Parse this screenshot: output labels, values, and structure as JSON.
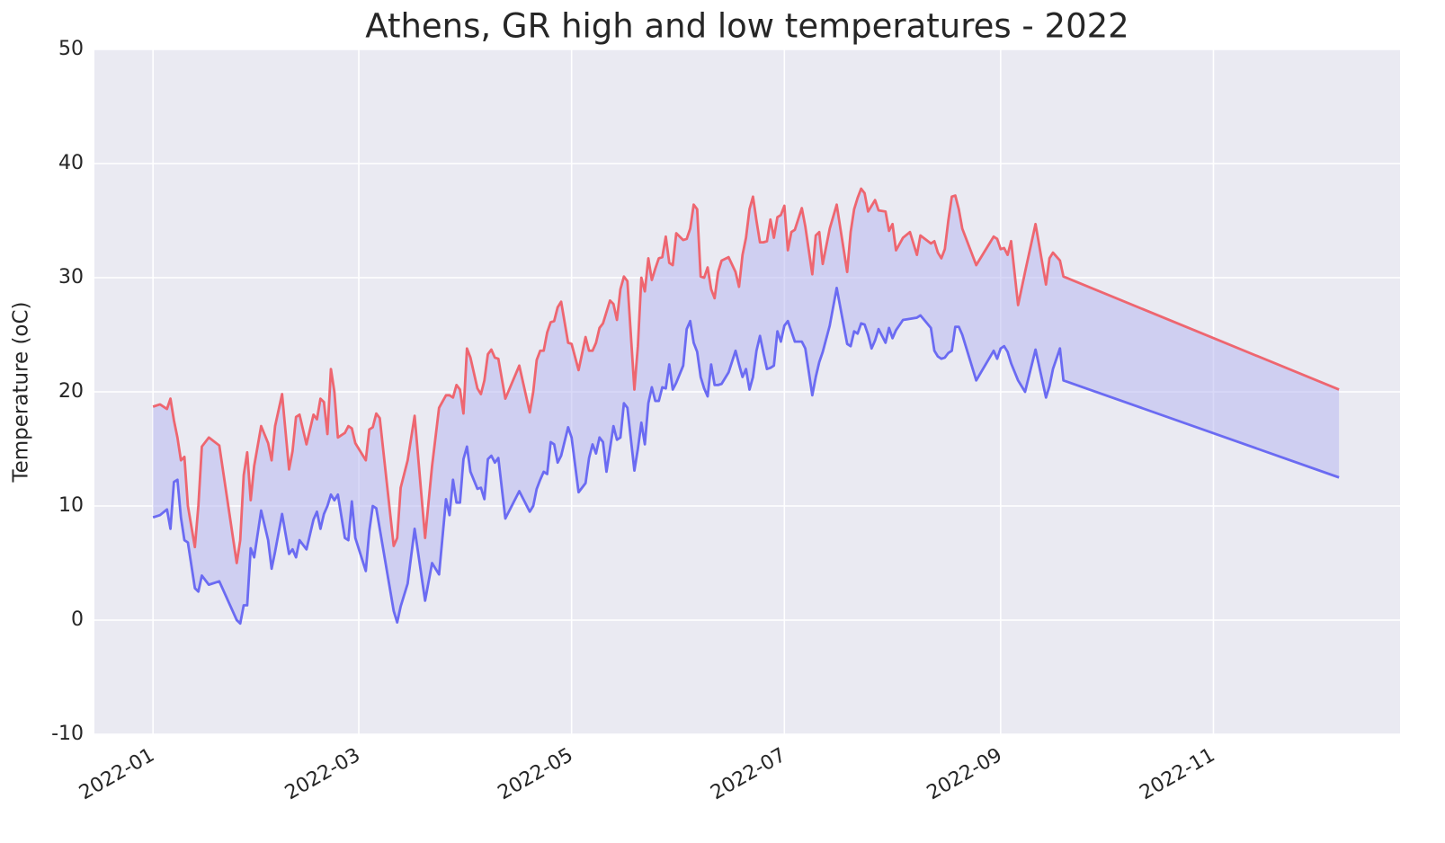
{
  "chart_data": {
    "type": "line",
    "title": "Athens, GR high and low temperatures - 2022",
    "y_label": "Temperature (oC)",
    "x": [
      0,
      2,
      4,
      5,
      6,
      7,
      8,
      9,
      10,
      12,
      13,
      14,
      16,
      19,
      24,
      25,
      26,
      27,
      28,
      29,
      31,
      33,
      34,
      35,
      37,
      39,
      40,
      41,
      42,
      44,
      46,
      47,
      48,
      49,
      50,
      51,
      52,
      53,
      55,
      56,
      57,
      58,
      61,
      62,
      63,
      64,
      65,
      69,
      70,
      71,
      73,
      75,
      78,
      80,
      82,
      84,
      85,
      86,
      87,
      88,
      89,
      90,
      91,
      93,
      94,
      95,
      96,
      97,
      98,
      99,
      101,
      105,
      108,
      109,
      110,
      111,
      112,
      113,
      114,
      115,
      116,
      117,
      119,
      120,
      122,
      124,
      125,
      126,
      127,
      128,
      129,
      130,
      131,
      132,
      133,
      134,
      135,
      136,
      138,
      139,
      140,
      141,
      142,
      143,
      144,
      145,
      146,
      147,
      148,
      149,
      150,
      152,
      153,
      154,
      155,
      156,
      157,
      158,
      159,
      160,
      161,
      162,
      163,
      165,
      167,
      168,
      169,
      170,
      171,
      172,
      173,
      174,
      175,
      176,
      177,
      178,
      179,
      180,
      181,
      182,
      183,
      184,
      186,
      187,
      189,
      190,
      191,
      192,
      194,
      196,
      199,
      200,
      201,
      202,
      203,
      204,
      205,
      206,
      207,
      208,
      210,
      211,
      212,
      213,
      215,
      217,
      219,
      220,
      223,
      224,
      225,
      226,
      227,
      228,
      229,
      230,
      231,
      232,
      236,
      241,
      242,
      243,
      244,
      245,
      246,
      248,
      250,
      253,
      256,
      257,
      258,
      260,
      261,
      340
    ],
    "series": [
      {
        "color": "#ee6670",
        "values": [
          18.7,
          18.9,
          18.5,
          19.4,
          17.5,
          16,
          14,
          14.3,
          10,
          6.4,
          10,
          15.2,
          16,
          15.3,
          5,
          7,
          12.7,
          14.7,
          10.5,
          13.5,
          17,
          15.5,
          14,
          17,
          19.8,
          13.2,
          14.8,
          17.8,
          18,
          15.4,
          18,
          17.6,
          19.4,
          19.1,
          16.3,
          22,
          20,
          16,
          16.4,
          17,
          16.8,
          15.5,
          14,
          16.7,
          16.9,
          18.1,
          17.7,
          6.5,
          7.2,
          11.6,
          14,
          17.9,
          7.2,
          13.5,
          18.6,
          19.7,
          19.7,
          19.5,
          20.6,
          20.2,
          18.1,
          23.8,
          23,
          20.3,
          19.8,
          21,
          23.3,
          23.7,
          23,
          22.9,
          19.4,
          22.3,
          18.2,
          20,
          22.8,
          23.6,
          23.6,
          25.2,
          26.1,
          26.2,
          27.4,
          27.9,
          24.3,
          24.2,
          21.9,
          24.8,
          23.6,
          23.6,
          24.3,
          25.6,
          26,
          27,
          28,
          27.7,
          26.3,
          29,
          30.1,
          29.7,
          20.2,
          24,
          30,
          28.8,
          31.7,
          29.8,
          30.8,
          31.7,
          31.8,
          33.6,
          31.3,
          31.1,
          33.9,
          33.3,
          33.4,
          34.3,
          36.4,
          36,
          30.1,
          30,
          30.9,
          29,
          28.2,
          30.5,
          31.5,
          31.8,
          30.5,
          29.2,
          32,
          33.5,
          36,
          37.1,
          35,
          33.1,
          33.1,
          33.2,
          35.1,
          33.5,
          35.3,
          35.5,
          36.3,
          32.4,
          34,
          34.2,
          36.1,
          34.5,
          30.3,
          33.7,
          34,
          31.2,
          34.3,
          36.4,
          30.5,
          34,
          36,
          37,
          37.8,
          37.4,
          35.8,
          36.3,
          36.8,
          35.9,
          35.8,
          34.1,
          34.7,
          32.4,
          33.5,
          34,
          32,
          33.7,
          33,
          33.2,
          32.2,
          31.7,
          32.5,
          35,
          37.1,
          37.2,
          36,
          34.3,
          31.1,
          33.6,
          33.4,
          32.5,
          32.6,
          32,
          33.2,
          27.6,
          30.5,
          34.7,
          29.4,
          31.7,
          32.2,
          31.5,
          30.1,
          20.2
        ]
      },
      {
        "color": "#6b6bf2",
        "values": [
          9,
          9.2,
          9.7,
          8,
          12.1,
          12.3,
          9,
          7,
          6.8,
          2.8,
          2.5,
          3.9,
          3.1,
          3.4,
          0,
          -0.3,
          1.3,
          1.3,
          6.3,
          5.5,
          9.6,
          7,
          4.5,
          6,
          9.3,
          5.8,
          6.2,
          5.5,
          7,
          6.2,
          8.8,
          9.5,
          8,
          9.3,
          10,
          11,
          10.5,
          11,
          7.2,
          7,
          10.4,
          7.2,
          4.3,
          7.8,
          10,
          9.8,
          8,
          0.8,
          -0.2,
          1.2,
          3.2,
          8,
          1.7,
          5,
          4,
          10.6,
          9.2,
          12.3,
          10.3,
          10.3,
          14.1,
          15.2,
          13,
          11.5,
          11.6,
          10.6,
          14.1,
          14.4,
          13.8,
          14.2,
          8.9,
          11.3,
          9.5,
          10,
          11.5,
          12.3,
          13,
          12.8,
          15.6,
          15.4,
          13.8,
          14.4,
          16.9,
          16,
          11.2,
          12,
          14.2,
          15.4,
          14.6,
          16,
          15.6,
          13,
          15,
          17,
          15.8,
          16,
          19,
          18.6,
          13.1,
          15,
          17.3,
          15.4,
          19,
          20.4,
          19.2,
          19.2,
          20.4,
          20.3,
          22.4,
          20.2,
          20.8,
          22.3,
          25.5,
          26.2,
          24.3,
          23.5,
          21.3,
          20.3,
          19.6,
          22.4,
          20.6,
          20.6,
          20.7,
          21.7,
          23.6,
          22.4,
          21.3,
          22,
          20.2,
          21.3,
          23.6,
          24.9,
          23.4,
          22,
          22.1,
          22.3,
          25.3,
          24.4,
          25.8,
          26.2,
          25.3,
          24.4,
          24.4,
          23.8,
          19.7,
          21.3,
          22.6,
          23.5,
          25.8,
          29.1,
          24.2,
          24,
          25.3,
          25.1,
          26,
          25.9,
          25,
          23.8,
          24.5,
          25.5,
          24.3,
          25.6,
          24.7,
          25.4,
          26.3,
          26.4,
          26.5,
          26.7,
          25.6,
          23.6,
          23.1,
          22.9,
          23,
          23.4,
          23.6,
          25.7,
          25.7,
          25,
          21,
          23.6,
          22.9,
          23.8,
          24,
          23.5,
          22.5,
          21,
          20,
          23.7,
          19.5,
          20.5,
          22,
          23.8,
          21,
          12.5
        ]
      }
    ],
    "fill_color": "#b4b4f0",
    "xlim": [
      -16.8,
      357.5
    ],
    "xticks": [
      {
        "value": 0,
        "label": "2022-01"
      },
      {
        "value": 59,
        "label": "2022-03"
      },
      {
        "value": 120,
        "label": "2022-05"
      },
      {
        "value": 181,
        "label": "2022-07"
      },
      {
        "value": 243,
        "label": "2022-09"
      },
      {
        "value": 304,
        "label": "2022-11"
      }
    ],
    "ylim": [
      -10,
      50
    ],
    "yticks": [
      -10,
      0,
      10,
      20,
      30,
      40,
      50
    ],
    "grid": true
  }
}
